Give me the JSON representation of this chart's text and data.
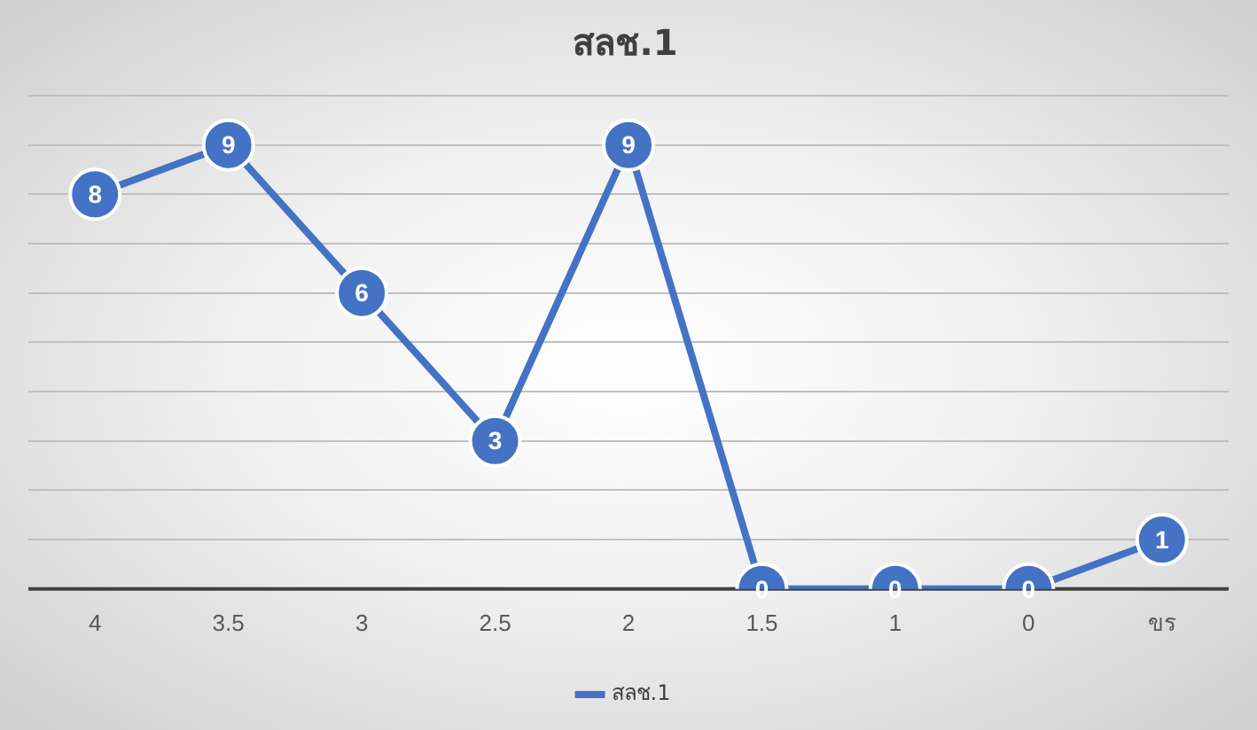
{
  "chart_data": {
    "type": "line",
    "title": "สลช.1",
    "categories": [
      "4",
      "3.5",
      "3",
      "2.5",
      "2",
      "1.5",
      "1",
      "0",
      "ขร"
    ],
    "series": [
      {
        "name": "สลช.1",
        "color": "#4472c4",
        "values": [
          8,
          9,
          6,
          3,
          9,
          0,
          0,
          0,
          1
        ]
      }
    ],
    "ylim": [
      0,
      10
    ],
    "yticks": [
      {
        "value": 0,
        "label": null
      },
      {
        "value": 1,
        "label": null
      },
      {
        "value": 2,
        "label": null
      },
      {
        "value": 3,
        "label": null
      },
      {
        "value": 4,
        "label": null
      },
      {
        "value": 5,
        "label": null
      },
      {
        "value": 6,
        "label": null
      },
      {
        "value": 7,
        "label": null
      },
      {
        "value": 8,
        "label": null
      },
      {
        "value": 9,
        "label": null
      },
      {
        "value": 10,
        "label": null
      }
    ],
    "tick_labels": "x",
    "grid": "y",
    "legend": "bottom",
    "marker": "circle",
    "line_style": "solid",
    "data_labels": true
  }
}
